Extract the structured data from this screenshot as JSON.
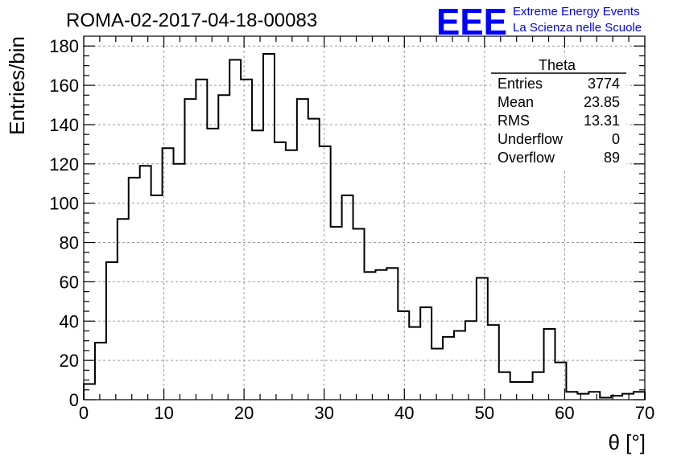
{
  "title": "ROMA-02-2017-04-18-00083",
  "logo": {
    "mark": "EEE",
    "line1": "Extreme Energy Events",
    "line2": "La Scienza nelle Scuole",
    "color": "#0000ff"
  },
  "stats_box": {
    "title": "Theta",
    "rows": [
      {
        "label": "Entries",
        "value": "3774"
      },
      {
        "label": "Mean",
        "value": "23.85"
      },
      {
        "label": "RMS",
        "value": "13.31"
      },
      {
        "label": "Underflow",
        "value": "0"
      },
      {
        "label": "Overflow",
        "value": "89"
      }
    ]
  },
  "chart_data": {
    "type": "bar",
    "style": "step-histogram",
    "title": "ROMA-02-2017-04-18-00083",
    "xlabel": "θ [°]",
    "ylabel": "Entries/bin",
    "xlim": [
      0,
      70
    ],
    "ylim": [
      0,
      185
    ],
    "bin_width": 1.4,
    "grid": true,
    "xticks": [
      0,
      10,
      20,
      30,
      40,
      50,
      60,
      70
    ],
    "yticks": [
      0,
      20,
      40,
      60,
      80,
      100,
      120,
      140,
      160,
      180
    ],
    "values": [
      8,
      29,
      70,
      92,
      113,
      119,
      104,
      128,
      120,
      153,
      163,
      138,
      155,
      173,
      163,
      137,
      176,
      131,
      127,
      153,
      143,
      129,
      88,
      104,
      87,
      65,
      66,
      67,
      45,
      37,
      47,
      26,
      32,
      35,
      40,
      62,
      38,
      14,
      9,
      9,
      14,
      36,
      19,
      4,
      3,
      4,
      1,
      2,
      3,
      4
    ]
  }
}
